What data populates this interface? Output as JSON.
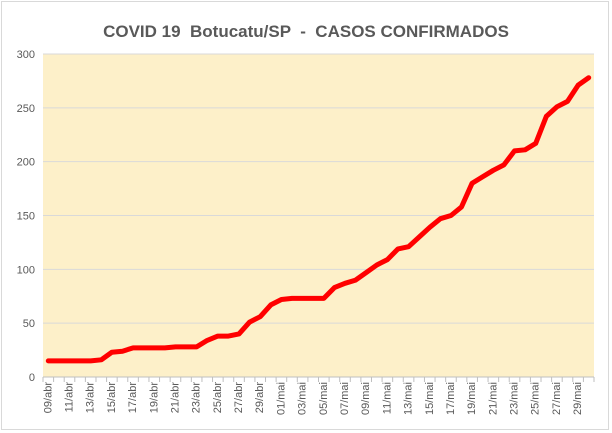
{
  "chart_data": {
    "type": "line",
    "title": "COVID 19  Botucatu/SP  -  CASOS CONFIRMADOS",
    "xlabel": "",
    "ylabel": "",
    "ylim": [
      0,
      300
    ],
    "y_ticks": [
      "0",
      "50",
      "100",
      "150",
      "200",
      "250",
      "300"
    ],
    "x_tick_labels": [
      "09/abr",
      "11/abr",
      "13/abr",
      "15/abr",
      "17/abr",
      "19/abr",
      "21/abr",
      "23/abr",
      "25/abr",
      "27/abr",
      "29/abr",
      "01/mai",
      "03/mai",
      "05/mai",
      "07/mai",
      "09/mai",
      "11/mai",
      "13/mai",
      "15/mai",
      "17/mai",
      "19/mai",
      "21/mai",
      "23/mai",
      "25/mai",
      "27/mai",
      "29/mai"
    ],
    "plot_background": "#fdf0c9",
    "line_color": "#ff0000",
    "grid": true,
    "legend": "none",
    "series": [
      {
        "x": [
          "09/abr",
          "10/abr",
          "11/abr",
          "12/abr",
          "13/abr",
          "14/abr",
          "15/abr",
          "16/abr",
          "17/abr",
          "18/abr",
          "19/abr",
          "20/abr",
          "21/abr",
          "22/abr",
          "23/abr",
          "24/abr",
          "25/abr",
          "26/abr",
          "27/abr",
          "28/abr",
          "29/abr",
          "30/abr",
          "01/mai",
          "02/mai",
          "03/mai",
          "04/mai",
          "05/mai",
          "06/mai",
          "07/mai",
          "08/mai",
          "09/mai",
          "10/mai",
          "11/mai",
          "12/mai",
          "13/mai",
          "14/mai",
          "15/mai",
          "16/mai",
          "17/mai",
          "18/mai",
          "19/mai",
          "20/mai",
          "21/mai",
          "22/mai",
          "23/mai",
          "24/mai",
          "25/mai",
          "26/mai",
          "27/mai",
          "28/mai",
          "29/mai",
          "30/mai"
        ],
        "values": [
          15,
          15,
          15,
          15,
          15,
          16,
          23,
          24,
          27,
          27,
          27,
          27,
          28,
          28,
          28,
          34,
          38,
          38,
          40,
          51,
          56,
          67,
          72,
          73,
          73,
          73,
          73,
          83,
          87,
          90,
          97,
          104,
          109,
          119,
          121,
          130,
          139,
          147,
          150,
          158,
          180,
          186,
          192,
          197,
          210,
          211,
          217,
          242,
          251,
          256,
          271,
          278
        ]
      }
    ]
  }
}
